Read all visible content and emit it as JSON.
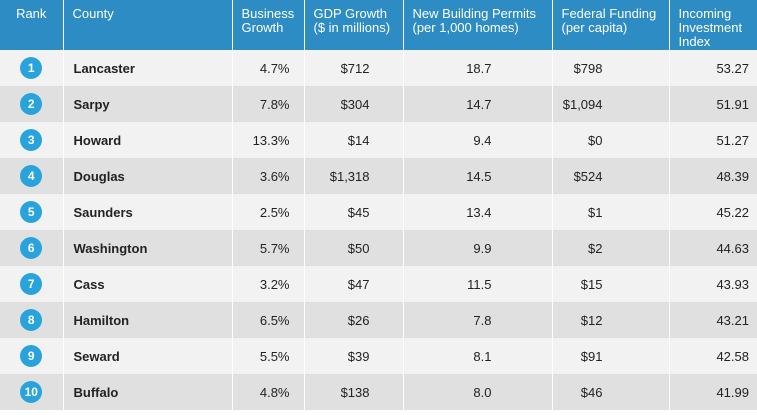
{
  "header": {
    "rank": "Rank",
    "county": "County",
    "business_growth": [
      "Business",
      "Growth"
    ],
    "gdp_growth": [
      "GDP Growth",
      "($ in millions)"
    ],
    "permits": [
      "New Building Permits",
      "(per 1,000 homes)"
    ],
    "federal": [
      "Federal Funding",
      "(per capita)"
    ],
    "investment": [
      "Incoming",
      "Investment",
      "Index"
    ]
  },
  "colors": {
    "header_bg": "#2d8cc4",
    "badge": "#29a3dc",
    "row_light": "#f2f2f2",
    "row_dark": "#e0e0e0"
  },
  "rows": [
    {
      "rank": "1",
      "county": "Lancaster",
      "business_growth": "4.7%",
      "gdp_growth": "$712",
      "permits": "18.7",
      "federal": "$798",
      "investment": "53.27"
    },
    {
      "rank": "2",
      "county": "Sarpy",
      "business_growth": "7.8%",
      "gdp_growth": "$304",
      "permits": "14.7",
      "federal": "$1,094",
      "investment": "51.91"
    },
    {
      "rank": "3",
      "county": "Howard",
      "business_growth": "13.3%",
      "gdp_growth": "$14",
      "permits": "9.4",
      "federal": "$0",
      "investment": "51.27"
    },
    {
      "rank": "4",
      "county": "Douglas",
      "business_growth": "3.6%",
      "gdp_growth": "$1,318",
      "permits": "14.5",
      "federal": "$524",
      "investment": "48.39"
    },
    {
      "rank": "5",
      "county": "Saunders",
      "business_growth": "2.5%",
      "gdp_growth": "$45",
      "permits": "13.4",
      "federal": "$1",
      "investment": "45.22"
    },
    {
      "rank": "6",
      "county": "Washington",
      "business_growth": "5.7%",
      "gdp_growth": "$50",
      "permits": "9.9",
      "federal": "$2",
      "investment": "44.63"
    },
    {
      "rank": "7",
      "county": "Cass",
      "business_growth": "3.2%",
      "gdp_growth": "$47",
      "permits": "11.5",
      "federal": "$15",
      "investment": "43.93"
    },
    {
      "rank": "8",
      "county": "Hamilton",
      "business_growth": "6.5%",
      "gdp_growth": "$26",
      "permits": "7.8",
      "federal": "$12",
      "investment": "43.21"
    },
    {
      "rank": "9",
      "county": "Seward",
      "business_growth": "5.5%",
      "gdp_growth": "$39",
      "permits": "8.1",
      "federal": "$91",
      "investment": "42.58"
    },
    {
      "rank": "10",
      "county": "Buffalo",
      "business_growth": "4.8%",
      "gdp_growth": "$138",
      "permits": "8.0",
      "federal": "$46",
      "investment": "41.99"
    }
  ]
}
